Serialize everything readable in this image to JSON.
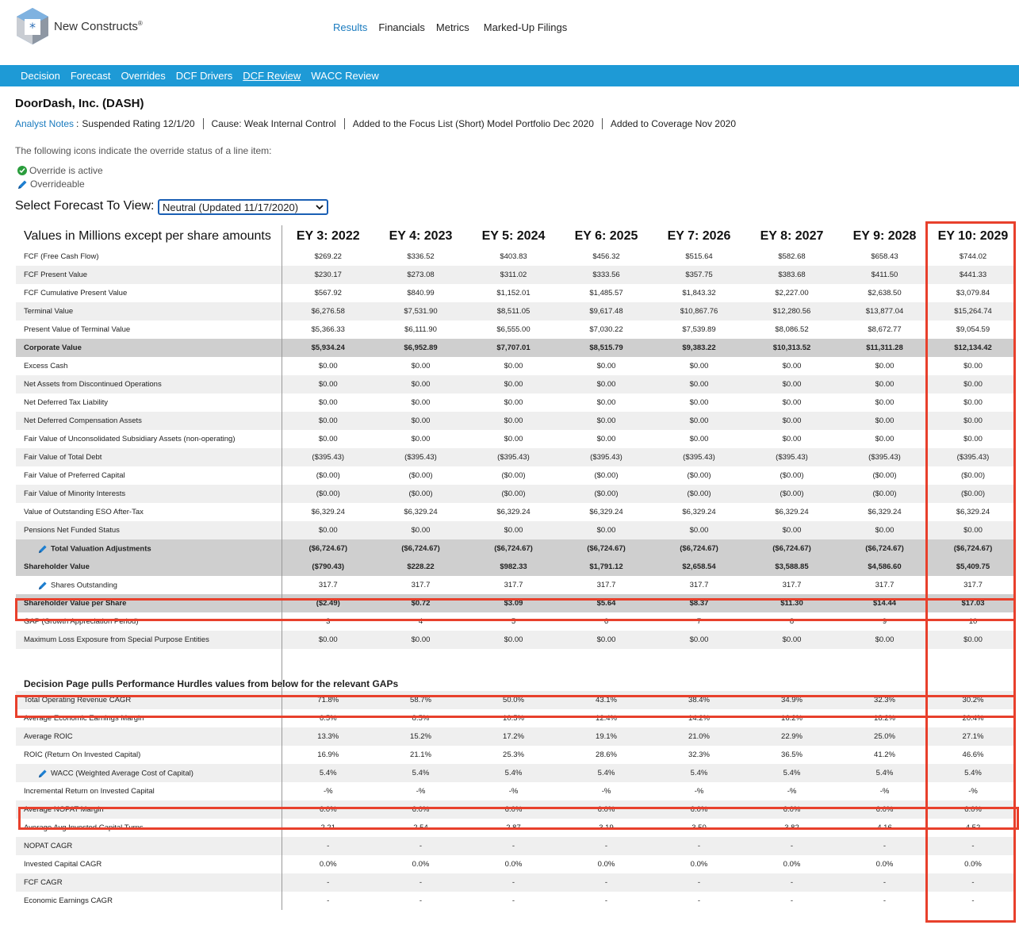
{
  "brand": {
    "name": "New Constructs",
    "trademark": "®"
  },
  "top_nav": [
    "Results",
    "Financials",
    "Metrics",
    "Marked-Up Filings"
  ],
  "top_nav_active": 0,
  "sub_nav": [
    "Decision",
    "Forecast",
    "Overrides",
    "DCF Drivers",
    "DCF Review",
    "WACC Review"
  ],
  "sub_nav_current": 4,
  "company": "DoorDash, Inc. (DASH)",
  "analyst_notes": {
    "link": "Analyst Notes",
    "separator": ":",
    "items": [
      "Suspended Rating 12/1/20",
      "Cause: Weak Internal Control",
      "Added to the Focus List (Short) Model Portfolio Dec 2020",
      "Added to Coverage Nov 2020"
    ]
  },
  "legend": {
    "intro": "The following icons indicate the override status of a line item:",
    "active": "Override is active",
    "overrideable": "Overrideable"
  },
  "forecast_select": {
    "label": "Select Forecast To View:",
    "value": "Neutral (Updated 11/17/2020)"
  },
  "table": {
    "header_label": "Values in Millions except per share amounts",
    "columns": [
      "EY 3: 2022",
      "EY 4: 2023",
      "EY 5: 2024",
      "EY 6: 2025",
      "EY 7: 2026",
      "EY 8: 2027",
      "EY 9: 2028",
      "EY 10: 2029"
    ],
    "rows": [
      {
        "label": "FCF (Free Cash Flow)",
        "values": [
          "$269.22",
          "$336.52",
          "$403.83",
          "$456.32",
          "$515.64",
          "$582.68",
          "$658.43",
          "$744.02"
        ]
      },
      {
        "label": "FCF Present Value",
        "values": [
          "$230.17",
          "$273.08",
          "$311.02",
          "$333.56",
          "$357.75",
          "$383.68",
          "$411.50",
          "$441.33"
        ]
      },
      {
        "label": "FCF Cumulative Present Value",
        "values": [
          "$567.92",
          "$840.99",
          "$1,152.01",
          "$1,485.57",
          "$1,843.32",
          "$2,227.00",
          "$2,638.50",
          "$3,079.84"
        ]
      },
      {
        "label": "Terminal Value",
        "values": [
          "$6,276.58",
          "$7,531.90",
          "$8,511.05",
          "$9,617.48",
          "$10,867.76",
          "$12,280.56",
          "$13,877.04",
          "$15,264.74"
        ]
      },
      {
        "label": "Present Value of Terminal Value",
        "values": [
          "$5,366.33",
          "$6,111.90",
          "$6,555.00",
          "$7,030.22",
          "$7,539.89",
          "$8,086.52",
          "$8,672.77",
          "$9,054.59"
        ]
      },
      {
        "label": "Corporate Value",
        "style": "bold",
        "values": [
          "$5,934.24",
          "$6,952.89",
          "$7,707.01",
          "$8,515.79",
          "$9,383.22",
          "$10,313.52",
          "$11,311.28",
          "$12,134.42"
        ]
      },
      {
        "label": "Excess Cash",
        "values": [
          "$0.00",
          "$0.00",
          "$0.00",
          "$0.00",
          "$0.00",
          "$0.00",
          "$0.00",
          "$0.00"
        ]
      },
      {
        "label": "Net Assets from Discontinued Operations",
        "values": [
          "$0.00",
          "$0.00",
          "$0.00",
          "$0.00",
          "$0.00",
          "$0.00",
          "$0.00",
          "$0.00"
        ]
      },
      {
        "label": "Net Deferred Tax Liability",
        "values": [
          "$0.00",
          "$0.00",
          "$0.00",
          "$0.00",
          "$0.00",
          "$0.00",
          "$0.00",
          "$0.00"
        ]
      },
      {
        "label": "Net Deferred Compensation Assets",
        "values": [
          "$0.00",
          "$0.00",
          "$0.00",
          "$0.00",
          "$0.00",
          "$0.00",
          "$0.00",
          "$0.00"
        ]
      },
      {
        "label": "Fair Value of Unconsolidated Subsidiary Assets (non-operating)",
        "values": [
          "$0.00",
          "$0.00",
          "$0.00",
          "$0.00",
          "$0.00",
          "$0.00",
          "$0.00",
          "$0.00"
        ]
      },
      {
        "label": "Fair Value of Total Debt",
        "values": [
          "($395.43)",
          "($395.43)",
          "($395.43)",
          "($395.43)",
          "($395.43)",
          "($395.43)",
          "($395.43)",
          "($395.43)"
        ]
      },
      {
        "label": "Fair Value of Preferred Capital",
        "values": [
          "($0.00)",
          "($0.00)",
          "($0.00)",
          "($0.00)",
          "($0.00)",
          "($0.00)",
          "($0.00)",
          "($0.00)"
        ]
      },
      {
        "label": "Fair Value of Minority Interests",
        "values": [
          "($0.00)",
          "($0.00)",
          "($0.00)",
          "($0.00)",
          "($0.00)",
          "($0.00)",
          "($0.00)",
          "($0.00)"
        ]
      },
      {
        "label": "Value of Outstanding ESO After-Tax",
        "values": [
          "$6,329.24",
          "$6,329.24",
          "$6,329.24",
          "$6,329.24",
          "$6,329.24",
          "$6,329.24",
          "$6,329.24",
          "$6,329.24"
        ]
      },
      {
        "label": "Pensions Net Funded Status",
        "values": [
          "$0.00",
          "$0.00",
          "$0.00",
          "$0.00",
          "$0.00",
          "$0.00",
          "$0.00",
          "$0.00"
        ]
      },
      {
        "label": "Total Valuation Adjustments",
        "style": "bold",
        "icon": "pencil",
        "values": [
          "($6,724.67)",
          "($6,724.67)",
          "($6,724.67)",
          "($6,724.67)",
          "($6,724.67)",
          "($6,724.67)",
          "($6,724.67)",
          "($6,724.67)"
        ]
      },
      {
        "label": "Shareholder Value",
        "style": "bold",
        "values": [
          "($790.43)",
          "$228.22",
          "$982.33",
          "$1,791.12",
          "$2,658.54",
          "$3,588.85",
          "$4,586.60",
          "$5,409.75"
        ]
      },
      {
        "label": "Shares Outstanding",
        "icon": "pencil",
        "values": [
          "317.7",
          "317.7",
          "317.7",
          "317.7",
          "317.7",
          "317.7",
          "317.7",
          "317.7"
        ]
      },
      {
        "label": "Shareholder Value per Share",
        "style": "bold",
        "values": [
          "($2.49)",
          "$0.72",
          "$3.09",
          "$5.64",
          "$8.37",
          "$11.30",
          "$14.44",
          "$17.03"
        ]
      },
      {
        "label": "GAP (Growth Appreciation Period)",
        "values": [
          "3",
          "4",
          "5",
          "6",
          "7",
          "8",
          "9",
          "10"
        ]
      },
      {
        "label": "Maximum Loss Exposure from Special Purpose Entities",
        "values": [
          "$0.00",
          "$0.00",
          "$0.00",
          "$0.00",
          "$0.00",
          "$0.00",
          "$0.00",
          "$0.00"
        ]
      },
      {
        "label": "",
        "style": "spacer",
        "values": [
          "",
          "",
          "",
          "",
          "",
          "",
          "",
          ""
        ]
      },
      {
        "label": "Decision Page pulls Performance Hurdles values from below for the relevant GAPs",
        "style": "section",
        "values": [
          "",
          "",
          "",
          "",
          "",
          "",
          "",
          ""
        ]
      },
      {
        "label": "Total Operating Revenue CAGR",
        "values": [
          "71.8%",
          "58.7%",
          "50.0%",
          "43.1%",
          "38.4%",
          "34.9%",
          "32.3%",
          "30.2%"
        ]
      },
      {
        "label": "Average Economic Earnings Margin",
        "values": [
          "6.5%",
          "8.5%",
          "10.5%",
          "12.4%",
          "14.2%",
          "16.2%",
          "18.2%",
          "20.4%"
        ]
      },
      {
        "label": "Average ROIC",
        "values": [
          "13.3%",
          "15.2%",
          "17.2%",
          "19.1%",
          "21.0%",
          "22.9%",
          "25.0%",
          "27.1%"
        ]
      },
      {
        "label": "ROIC (Return On Invested Capital)",
        "values": [
          "16.9%",
          "21.1%",
          "25.3%",
          "28.6%",
          "32.3%",
          "36.5%",
          "41.2%",
          "46.6%"
        ]
      },
      {
        "label": "WACC (Weighted Average Cost of Capital)",
        "icon": "pencil",
        "values": [
          "5.4%",
          "5.4%",
          "5.4%",
          "5.4%",
          "5.4%",
          "5.4%",
          "5.4%",
          "5.4%"
        ]
      },
      {
        "label": "Incremental Return on Invested Capital",
        "values": [
          "-%",
          "-%",
          "-%",
          "-%",
          "-%",
          "-%",
          "-%",
          "-%"
        ]
      },
      {
        "label": "Average NOPAT Margin",
        "values": [
          "6.0%",
          "6.0%",
          "6.0%",
          "6.0%",
          "6.0%",
          "6.0%",
          "6.0%",
          "6.0%"
        ]
      },
      {
        "label": "Average Avg Invested Capital Turns",
        "values": [
          "2.21",
          "2.54",
          "2.87",
          "3.19",
          "3.50",
          "3.82",
          "4.16",
          "4.52"
        ]
      },
      {
        "label": "NOPAT CAGR",
        "values": [
          "-",
          "-",
          "-",
          "-",
          "-",
          "-",
          "-",
          "-"
        ]
      },
      {
        "label": "Invested Capital CAGR",
        "values": [
          "0.0%",
          "0.0%",
          "0.0%",
          "0.0%",
          "0.0%",
          "0.0%",
          "0.0%",
          "0.0%"
        ]
      },
      {
        "label": "FCF CAGR",
        "values": [
          "-",
          "-",
          "-",
          "-",
          "-",
          "-",
          "-",
          "-"
        ]
      },
      {
        "label": "Economic Earnings CAGR",
        "values": [
          "-",
          "-",
          "-",
          "-",
          "-",
          "-",
          "-",
          "-"
        ]
      }
    ]
  },
  "colors": {
    "accent": "#1e9ad6",
    "link": "#1a7bbf",
    "highlight": "#e8402c",
    "row_bold": "#cfcfcf",
    "row_alt": "#efefef",
    "check": "#2a9d3c"
  }
}
